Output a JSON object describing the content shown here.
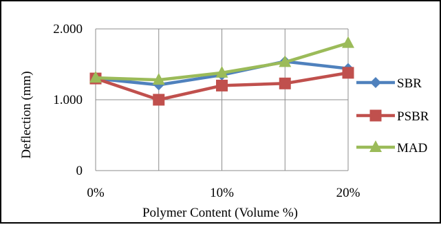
{
  "chart_data": {
    "type": "line",
    "title": "",
    "xlabel": "Polymer Content (Volume %)",
    "ylabel": "Deflection (mm)",
    "x": [
      0,
      5,
      10,
      15,
      20
    ],
    "x_tick_labels": [
      "0%",
      "10%",
      "20%"
    ],
    "x_tick_values": [
      0,
      10,
      20
    ],
    "xlim": [
      0,
      20
    ],
    "y_tick_labels": [
      "0",
      "1.000",
      "2.000"
    ],
    "y_tick_values": [
      0,
      1,
      2
    ],
    "ylim": [
      0,
      2
    ],
    "grid": true,
    "legend_position": "right",
    "series": [
      {
        "name": "SBR",
        "values": [
          1.3,
          1.21,
          1.35,
          1.54,
          1.44
        ],
        "color": "#4f81bd",
        "marker": "diamond"
      },
      {
        "name": "PSBR",
        "values": [
          1.3,
          1.0,
          1.2,
          1.23,
          1.38
        ],
        "color": "#c0504d",
        "marker": "square"
      },
      {
        "name": "MAD",
        "values": [
          1.31,
          1.28,
          1.38,
          1.53,
          1.8
        ],
        "color": "#9bbb59",
        "marker": "triangle"
      }
    ]
  }
}
